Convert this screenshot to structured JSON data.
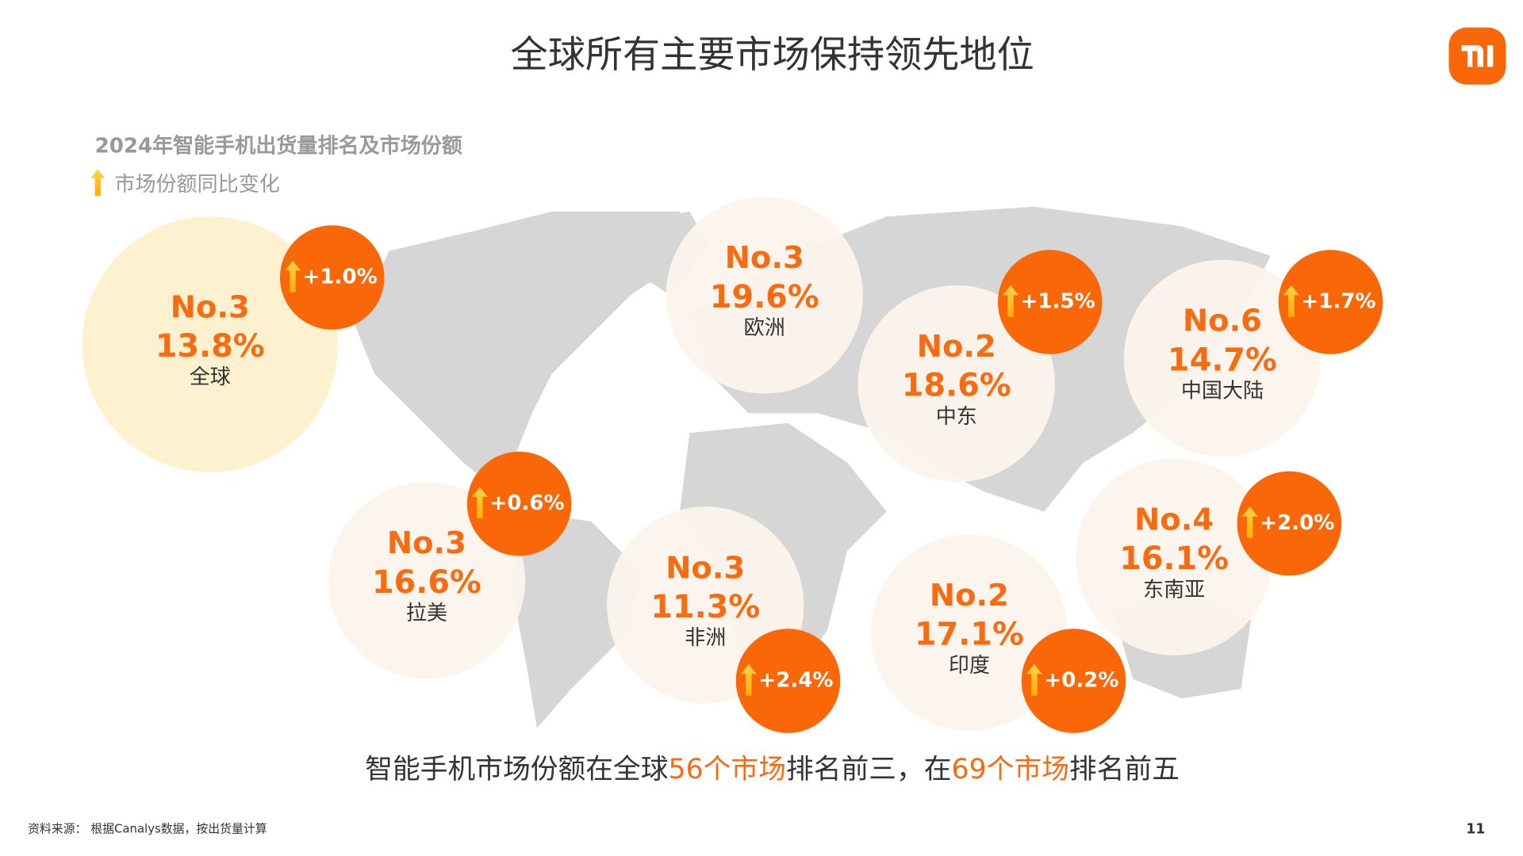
{
  "header": {
    "title": "全球所有主要市场保持领先地位"
  },
  "legend": {
    "subtitle": "2024年智能手机出货量排名及市场份额",
    "change_note": "市场份额同比变化"
  },
  "markets": [
    {
      "rank": "No.3",
      "share": "13.8%",
      "region": "全球",
      "change": "+1.0%"
    },
    {
      "rank": "No.3",
      "share": "19.6%",
      "region": "欧洲"
    },
    {
      "rank": "No.2",
      "share": "18.6%",
      "region": "中东",
      "change": "+1.5%"
    },
    {
      "rank": "No.6",
      "share": "14.7%",
      "region": "中国大陆",
      "change": "+1.7%"
    },
    {
      "rank": "No.3",
      "share": "16.6%",
      "region": "拉美",
      "change": "+0.6%"
    },
    {
      "rank": "No.3",
      "share": "11.3%",
      "region": "非洲",
      "change": "+2.4%"
    },
    {
      "rank": "No.2",
      "share": "17.1%",
      "region": "印度",
      "change": "+0.2%"
    },
    {
      "rank": "No.4",
      "share": "16.1%",
      "region": "东南亚",
      "change": "+2.0%"
    }
  ],
  "footer": {
    "summary": [
      "智能手机市场份额在全球",
      "56个市场",
      "排名前三，在",
      "69个市场",
      "排名前五"
    ],
    "source": "资料来源： 根据Canalys数据，按出货量计算",
    "page": "11"
  }
}
